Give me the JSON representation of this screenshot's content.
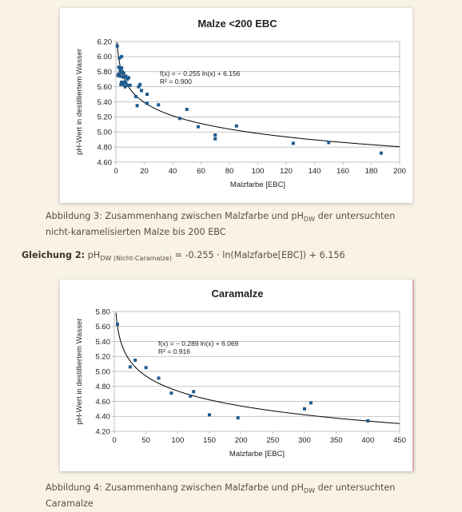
{
  "chart_data": [
    {
      "type": "scatter",
      "title": "Malze <200 EBC",
      "xlabel": "Malzfarbe [EBC]",
      "ylabel": "pH-Wert in destilliertem Wasser",
      "xlim": [
        0,
        200
      ],
      "ylim": [
        4.6,
        6.2
      ],
      "x_ticks": [
        "0",
        "20",
        "40",
        "60",
        "80",
        "100",
        "120",
        "140",
        "160",
        "180",
        "200"
      ],
      "y_ticks": [
        "4.60",
        "4.80",
        "5.00",
        "5.20",
        "5.40",
        "5.60",
        "5.80",
        "6.00",
        "6.20"
      ],
      "grid": "horizontal",
      "marker_color": "#1f5a8c",
      "trendline": {
        "type": "logarithmic",
        "a": -0.255,
        "b": 6.156,
        "equation": "f(x) = − 0.255 ln(x) + 6.156",
        "r2": "R² = 0.900"
      },
      "points": [
        [
          1,
          6.14
        ],
        [
          1.5,
          5.75
        ],
        [
          2,
          5.86
        ],
        [
          2,
          5.77
        ],
        [
          2.5,
          5.75
        ],
        [
          2.5,
          5.98
        ],
        [
          3,
          5.82
        ],
        [
          3,
          5.74
        ],
        [
          3.5,
          5.79
        ],
        [
          3.5,
          5.63
        ],
        [
          4,
          6.0
        ],
        [
          4,
          5.85
        ],
        [
          4,
          5.66
        ],
        [
          4.5,
          5.8
        ],
        [
          5,
          5.73
        ],
        [
          5,
          5.63
        ],
        [
          5.5,
          5.78
        ],
        [
          6,
          5.73
        ],
        [
          6,
          5.66
        ],
        [
          6.5,
          5.6
        ],
        [
          7,
          5.74
        ],
        [
          7,
          5.65
        ],
        [
          8,
          5.7
        ],
        [
          8,
          5.62
        ],
        [
          9,
          5.72
        ],
        [
          10,
          5.62
        ],
        [
          14,
          5.47
        ],
        [
          15,
          5.35
        ],
        [
          16,
          5.6
        ],
        [
          17,
          5.63
        ],
        [
          18,
          5.55
        ],
        [
          22,
          5.5
        ],
        [
          22,
          5.38
        ],
        [
          30,
          5.36
        ],
        [
          45,
          5.18
        ],
        [
          50,
          5.3
        ],
        [
          58,
          5.07
        ],
        [
          70,
          4.96
        ],
        [
          70,
          4.91
        ],
        [
          85,
          5.08
        ],
        [
          125,
          4.85
        ],
        [
          150,
          4.86
        ],
        [
          187,
          4.72
        ]
      ]
    },
    {
      "type": "scatter",
      "title": "Caramalze",
      "xlabel": "Malzfarbe [EBC]",
      "ylabel": "pH-Wert in destilliertem Wasser",
      "xlim": [
        0,
        450
      ],
      "ylim": [
        4.2,
        5.8
      ],
      "x_ticks": [
        "0",
        "50",
        "100",
        "150",
        "200",
        "250",
        "300",
        "350",
        "400",
        "450"
      ],
      "y_ticks": [
        "4.20",
        "4.40",
        "4.60",
        "4.80",
        "5.00",
        "5.20",
        "5.40",
        "5.60",
        "5.80"
      ],
      "grid": "horizontal",
      "marker_color": "#1f5a8c",
      "trendline": {
        "type": "logarithmic",
        "a": -0.289,
        "b": 6.069,
        "equation": "f(x) = − 0.289 ln(x) + 6.069",
        "r2": "R² = 0.916"
      },
      "points": [
        [
          5,
          5.63
        ],
        [
          25,
          5.06
        ],
        [
          33,
          5.15
        ],
        [
          50,
          5.05
        ],
        [
          70,
          4.91
        ],
        [
          90,
          4.71
        ],
        [
          120,
          4.67
        ],
        [
          125,
          4.73
        ],
        [
          150,
          4.42
        ],
        [
          195,
          4.38
        ],
        [
          300,
          4.5
        ],
        [
          310,
          4.58
        ],
        [
          400,
          4.34
        ]
      ]
    }
  ],
  "caption1": {
    "prefix": "Abbildung 3: Zusammenhang zwischen Malzfarbe und pH",
    "sub": "DW",
    "suffix": " der untersuchten nicht-karamelisierten Malze bis 200 EBC"
  },
  "equation": {
    "label": "Gleichung 2:",
    "ph": " pH",
    "sub": "DW (Nicht-Caramalze)",
    "formula": " = -0.255 · ln(Malzfarbe[EBC]) + 6.156"
  },
  "caption2": {
    "prefix": "Abbildung 4: Zusammenhang zwischen Malzfarbe und pH",
    "sub": "DW",
    "suffix": " der untersuchten Caramalze"
  }
}
